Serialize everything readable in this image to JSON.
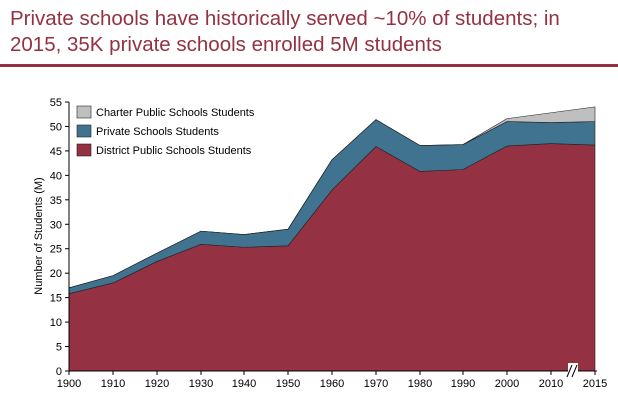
{
  "title": "Private schools have historically served ~10% of students; in 2015, 35K private schools enrolled 5M students",
  "chart_data": {
    "type": "area",
    "stacked": true,
    "x": [
      "1900",
      "1910",
      "1920",
      "1930",
      "1940",
      "1950",
      "1960",
      "1970",
      "1980",
      "1990",
      "2000",
      "2010",
      "2015"
    ],
    "series": [
      {
        "name": "District Public Schools Students",
        "color": "#943142",
        "values": [
          15.8,
          18.0,
          22.4,
          25.9,
          25.3,
          25.6,
          37.0,
          45.9,
          40.8,
          41.2,
          46.0,
          46.5,
          46.2
        ]
      },
      {
        "name": "Private Schools Students",
        "color": "#3f7390",
        "values": [
          1.2,
          1.5,
          1.7,
          2.7,
          2.6,
          3.4,
          6.2,
          5.5,
          5.3,
          5.1,
          5.0,
          4.3,
          4.8
        ]
      },
      {
        "name": "Charter Public Schools Students",
        "color": "#bfbfbf",
        "values": [
          0,
          0,
          0,
          0,
          0,
          0,
          0,
          0,
          0,
          0,
          0.6,
          2.0,
          3.0
        ]
      }
    ],
    "xlabel": "",
    "ylabel": "Number of Students (M)",
    "ylim": [
      0,
      55
    ],
    "yticks": [
      "0",
      "5",
      "10",
      "15",
      "20",
      "25",
      "30",
      "35",
      "40",
      "45",
      "50",
      "55"
    ],
    "axis_break": "//",
    "grid": false,
    "legend_position": "top-left"
  }
}
